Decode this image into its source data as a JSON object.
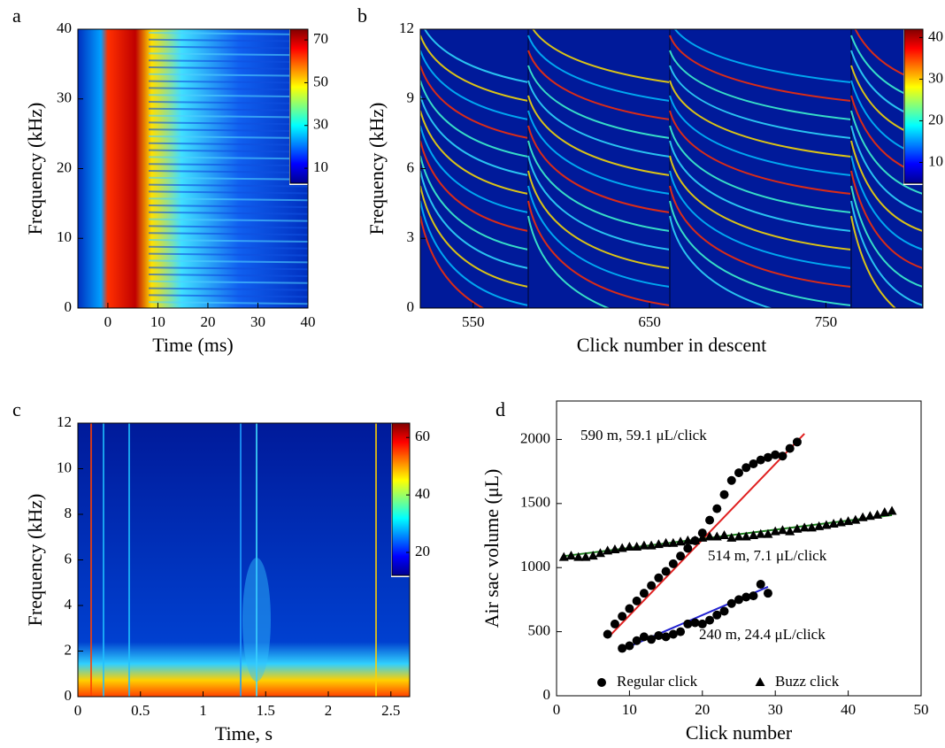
{
  "chart_data": [
    {
      "type": "heatmap",
      "panel": "a",
      "xlabel": "Time (ms)",
      "ylabel": "Frequency (kHz)",
      "xlim": [
        -6,
        40
      ],
      "xticks": [
        0,
        10,
        20,
        30,
        40
      ],
      "ylim": [
        0,
        40
      ],
      "yticks": [
        0,
        10,
        20,
        30,
        40
      ],
      "colorbar": {
        "lim": [
          3,
          75
        ],
        "ticks": [
          10,
          30,
          50,
          70
        ]
      }
    },
    {
      "type": "heatmap",
      "panel": "b",
      "xlabel": "Click number in descent",
      "ylabel": "Frequency (kHz)",
      "xlim": [
        520,
        805
      ],
      "xticks": [
        550,
        650,
        750
      ],
      "ylim": [
        0,
        12
      ],
      "yticks": [
        0,
        3,
        6,
        9,
        12
      ],
      "colorbar": {
        "lim": [
          5,
          42
        ],
        "ticks": [
          10,
          20,
          30,
          40
        ]
      }
    },
    {
      "type": "heatmap",
      "panel": "c",
      "xlabel": "Time, s",
      "ylabel": "Frequency (kHz)",
      "xlim": [
        0,
        2.65
      ],
      "xticks": [
        0,
        0.5,
        1,
        1.5,
        2,
        2.5
      ],
      "ylim": [
        0,
        12
      ],
      "yticks": [
        0,
        2,
        4,
        6,
        8,
        10,
        12
      ],
      "colorbar": {
        "lim": [
          12,
          65
        ],
        "ticks": [
          20,
          40,
          60
        ]
      }
    },
    {
      "type": "scatter",
      "panel": "d",
      "xlabel": "Click number",
      "ylabel": "Air sac volume (μL)",
      "xlim": [
        0,
        50
      ],
      "xticks": [
        0,
        10,
        20,
        30,
        40,
        50
      ],
      "ylim": [
        0,
        2300
      ],
      "yticks": [
        0,
        500,
        1000,
        1500,
        2000
      ],
      "legend": "lower center",
      "series": [
        {
          "name": "Regular click",
          "marker": "circle",
          "color": "#000000",
          "x": [
            7,
            8,
            9,
            10,
            11,
            12,
            13,
            14,
            15,
            16,
            17,
            18,
            19,
            20,
            21,
            22,
            23,
            24,
            25,
            26,
            27,
            28,
            29,
            30,
            31,
            32,
            33,
            9,
            10,
            11,
            12,
            13,
            14,
            15,
            16,
            17,
            18,
            19,
            20,
            21,
            22,
            23,
            24,
            25,
            26,
            27,
            28,
            29
          ],
          "values": [
            480,
            560,
            620,
            680,
            740,
            800,
            860,
            920,
            970,
            1030,
            1090,
            1150,
            1210,
            1270,
            1370,
            1460,
            1570,
            1680,
            1740,
            1780,
            1810,
            1840,
            1860,
            1880,
            1870,
            1930,
            1980,
            370,
            390,
            430,
            460,
            440,
            470,
            460,
            480,
            500,
            560,
            570,
            560,
            590,
            630,
            660,
            720,
            750,
            770,
            780,
            870,
            800
          ]
        },
        {
          "name": "Buzz click",
          "marker": "triangle",
          "color": "#000000",
          "x": [
            1,
            2,
            3,
            4,
            5,
            6,
            7,
            8,
            9,
            10,
            11,
            12,
            13,
            14,
            15,
            16,
            17,
            18,
            19,
            20,
            21,
            22,
            23,
            24,
            25,
            26,
            27,
            28,
            29,
            30,
            31,
            32,
            33,
            34,
            35,
            36,
            37,
            38,
            39,
            40,
            41,
            42,
            43,
            44,
            45,
            46
          ],
          "values": [
            1080,
            1090,
            1080,
            1080,
            1090,
            1110,
            1130,
            1140,
            1150,
            1160,
            1160,
            1170,
            1170,
            1180,
            1190,
            1190,
            1200,
            1210,
            1210,
            1230,
            1240,
            1240,
            1250,
            1230,
            1240,
            1240,
            1250,
            1260,
            1260,
            1280,
            1290,
            1280,
            1300,
            1310,
            1310,
            1320,
            1330,
            1340,
            1350,
            1360,
            1370,
            1390,
            1400,
            1410,
            1430,
            1440
          ]
        }
      ],
      "fits": [
        {
          "label": "590 m, 59.1 μL/click",
          "color": "#e02020",
          "x": [
            7,
            34
          ],
          "values": [
            450,
            2045
          ]
        },
        {
          "label": "514 m, 7.1 μL/click",
          "color": "#1a7a1a",
          "x": [
            1,
            46
          ],
          "values": [
            1090,
            1410
          ]
        },
        {
          "label": "240 m, 24.4 μL/click",
          "color": "#2020d0",
          "x": [
            9,
            29
          ],
          "values": [
            360,
            850
          ]
        }
      ]
    }
  ]
}
